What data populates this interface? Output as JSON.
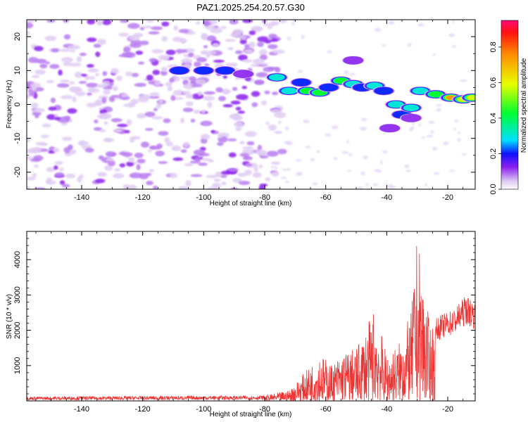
{
  "figure_title": "PAZ1.2025.254.20.57.G30",
  "chart_data": [
    {
      "type": "heatmap",
      "title": "PAZ1.2025.254.20.57.G30",
      "xlabel": "Height of straight line (km)",
      "ylabel": "Frequency (Hz)",
      "xlim": [
        -158,
        -11
      ],
      "ylim": [
        -25,
        25
      ],
      "x_ticks": [
        -140,
        -120,
        -100,
        -80,
        -60,
        -40,
        -20
      ],
      "y_ticks": [
        -20,
        -10,
        0,
        10,
        20
      ],
      "noise_region": {
        "x_range": [
          -158,
          -80
        ],
        "level": 0.05
      },
      "ridge": [
        {
          "x": -108,
          "y": 10,
          "value": 0.25
        },
        {
          "x": -100,
          "y": 10,
          "value": 0.2
        },
        {
          "x": -93,
          "y": 10,
          "value": 0.2
        },
        {
          "x": -87,
          "y": 9,
          "value": 0.15
        },
        {
          "x": -76,
          "y": 8,
          "value": 0.3
        },
        {
          "x": -72,
          "y": 4,
          "value": 0.3
        },
        {
          "x": -68,
          "y": 6.5,
          "value": 0.25
        },
        {
          "x": -66,
          "y": 4,
          "value": 0.45
        },
        {
          "x": -62,
          "y": 3.5,
          "value": 0.5
        },
        {
          "x": -59,
          "y": 5,
          "value": 0.2
        },
        {
          "x": -55,
          "y": 7,
          "value": 0.5
        },
        {
          "x": -51,
          "y": 6,
          "value": 0.3
        },
        {
          "x": -48,
          "y": 5,
          "value": 0.25
        },
        {
          "x": -44,
          "y": 5.5,
          "value": 0.3
        },
        {
          "x": -41,
          "y": 4,
          "value": 0.25
        },
        {
          "x": -37,
          "y": 0,
          "value": 0.3
        },
        {
          "x": -35,
          "y": -3,
          "value": 0.25
        },
        {
          "x": -32,
          "y": -1,
          "value": 0.35
        },
        {
          "x": -29,
          "y": 4,
          "value": 0.3
        },
        {
          "x": -24,
          "y": 3,
          "value": 0.55
        },
        {
          "x": -19,
          "y": 2,
          "value": 0.85
        },
        {
          "x": -15,
          "y": 1.5,
          "value": 0.7
        },
        {
          "x": -12,
          "y": 2,
          "value": 0.6
        }
      ],
      "secondary_blobs": [
        {
          "x": -51,
          "y": 13,
          "value": 0.1
        },
        {
          "x": -39,
          "y": -7,
          "value": 0.15
        },
        {
          "x": -32,
          "y": -4,
          "value": 0.12
        }
      ],
      "colorbar": {
        "label": "Normalized spectral amplitude",
        "range": [
          0,
          0.95
        ],
        "ticks": [
          "0.0",
          "0.2",
          "0.4",
          "0.6",
          "0.8"
        ],
        "tick_values": [
          0,
          0.2,
          0.4,
          0.6,
          0.8
        ]
      }
    },
    {
      "type": "line",
      "xlabel": "Height of straight line (km)",
      "ylabel": "SNR (10 * v/v)",
      "xlim": [
        -158,
        -11
      ],
      "ylim": [
        0,
        4800
      ],
      "x_ticks": [
        -140,
        -120,
        -100,
        -80,
        -60,
        -40,
        -20
      ],
      "y_ticks": [
        1000,
        2000,
        3000,
        4000
      ],
      "series": [
        {
          "name": "SNR",
          "color": "#ee3333",
          "envelope_x": [
            -158,
            -80,
            -72,
            -66,
            -62,
            -58,
            -54,
            -50,
            -46,
            -44,
            -40,
            -36,
            -32,
            -30,
            -28,
            -26,
            -22,
            -18,
            -14,
            -11
          ],
          "envelope_y": [
            120,
            150,
            300,
            900,
            1350,
            1050,
            1400,
            1500,
            2200,
            2700,
            1300,
            1650,
            2500,
            4700,
            3500,
            2200,
            2450,
            2600,
            3000,
            2800
          ]
        }
      ]
    }
  ]
}
